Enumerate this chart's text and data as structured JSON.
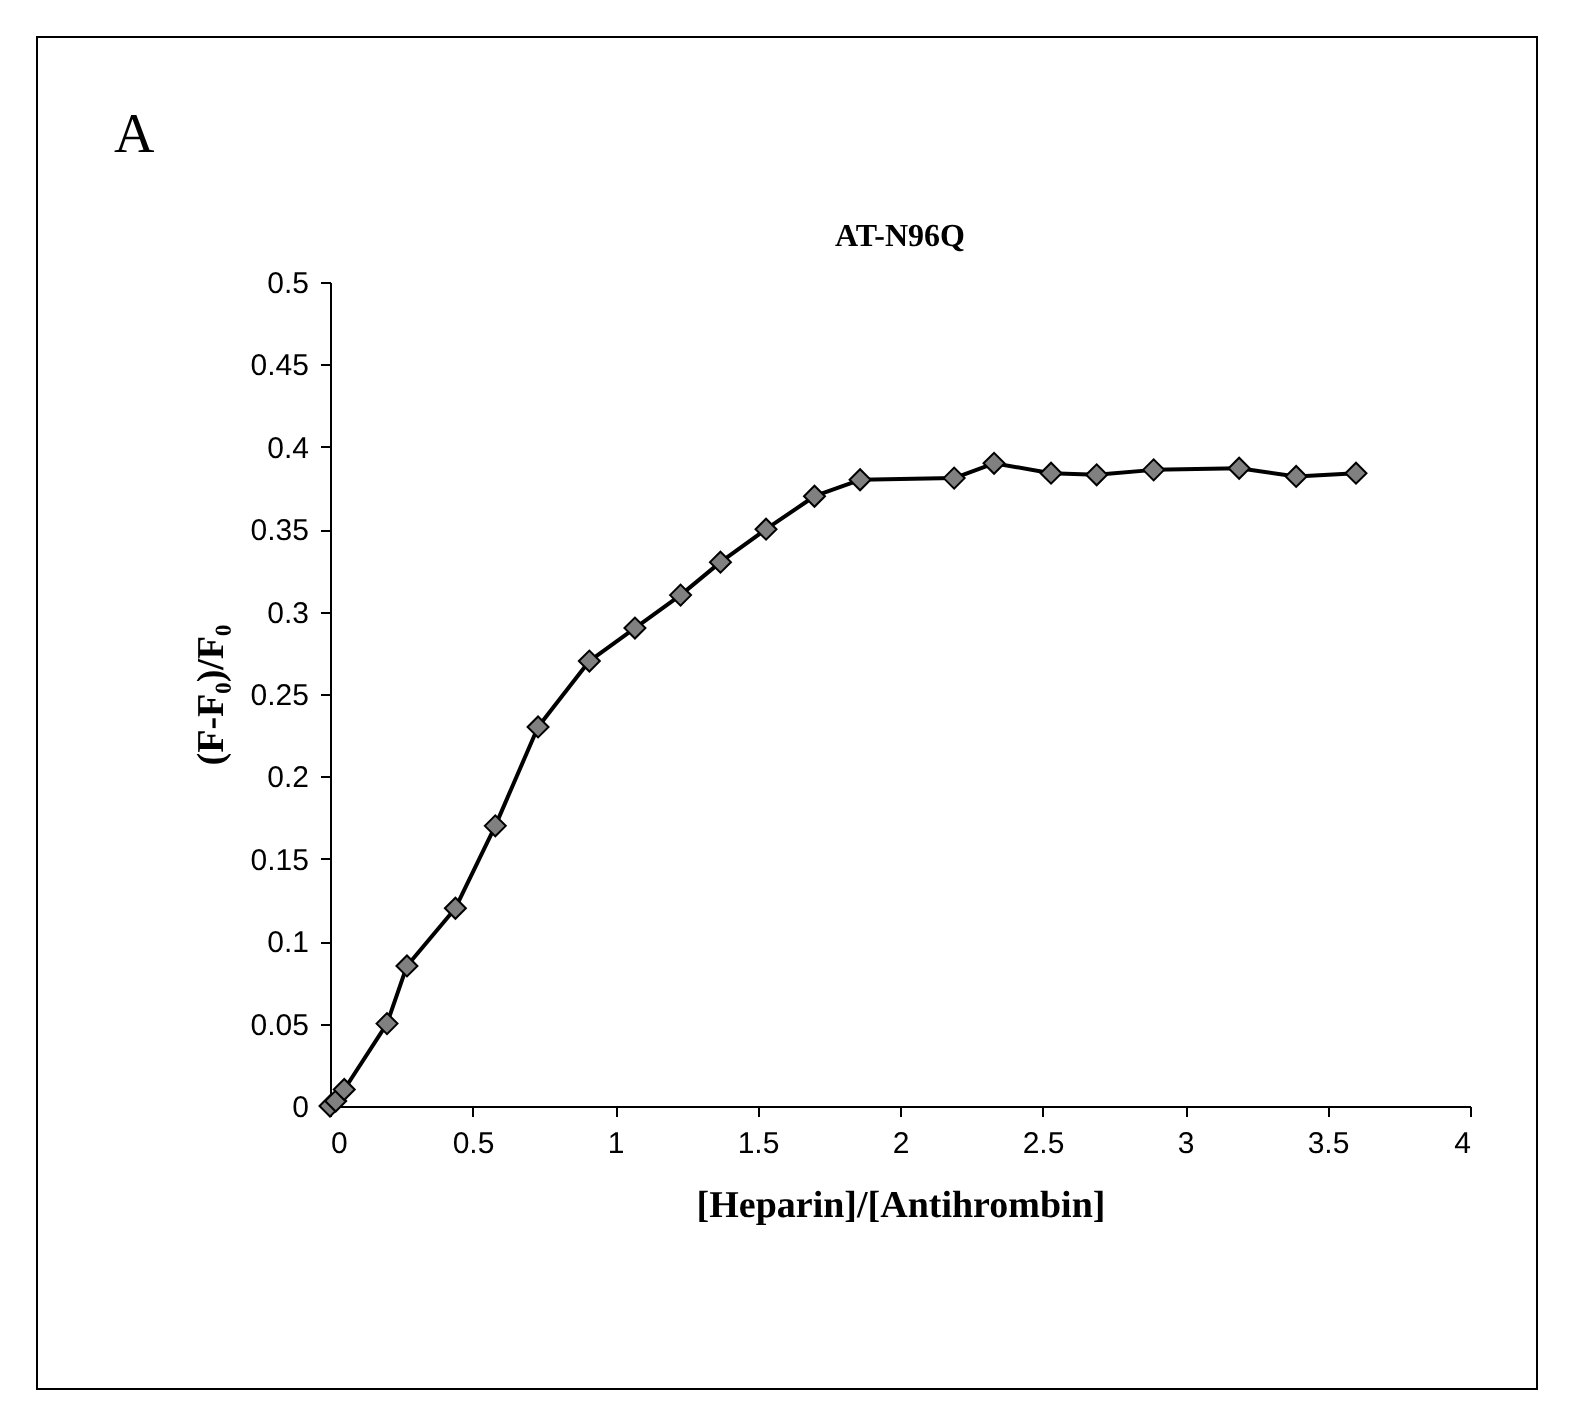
{
  "chart_data": {
    "type": "line",
    "title": "AT-N96Q",
    "xlabel": "[Heparin]/[Antihrombin]",
    "ylabel": "(F-F₀)/F₀",
    "annotations": [
      "A"
    ],
    "x": [
      0,
      0.02,
      0.05,
      0.2,
      0.27,
      0.44,
      0.58,
      0.73,
      0.91,
      1.07,
      1.23,
      1.37,
      1.53,
      1.7,
      1.86,
      2.19,
      2.33,
      2.53,
      2.69,
      2.89,
      3.19,
      3.39,
      3.6
    ],
    "series": [
      {
        "color": "#000000",
        "values": [
          0,
          0.003,
          0.01,
          0.05,
          0.085,
          0.12,
          0.17,
          0.23,
          0.27,
          0.29,
          0.31,
          0.33,
          0.35,
          0.37,
          0.38,
          0.381,
          0.39,
          0.384,
          0.383,
          0.386,
          0.387,
          0.382,
          0.384
        ]
      }
    ],
    "xlim": [
      0,
      4
    ],
    "xticks": [
      0,
      0.5,
      1,
      1.5,
      2,
      2.5,
      3,
      3.5,
      4
    ],
    "ylim": [
      0,
      0.5
    ],
    "yticks": [
      0,
      0.05,
      0.1,
      0.15,
      0.2,
      0.25,
      0.3,
      0.35,
      0.4,
      0.45,
      0.5
    ],
    "grid": false,
    "marker": "diamond",
    "line_style": "solid"
  }
}
